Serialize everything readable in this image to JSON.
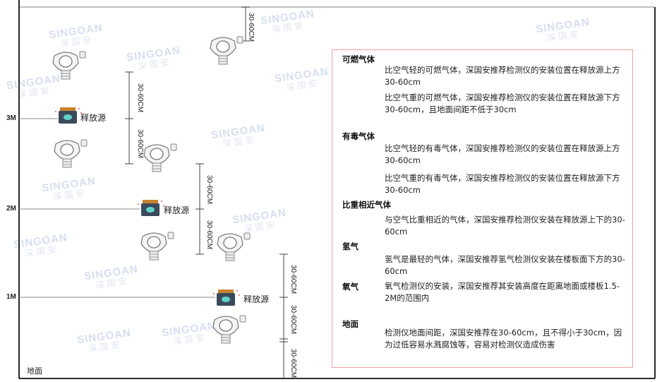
{
  "watermark": {
    "brand": "SINGOAN",
    "cn": "深国安"
  },
  "levels": [
    "3M",
    "2M",
    "1M"
  ],
  "ground_label": "地面",
  "source_label": "释放源",
  "dimension_label": "30-60CM",
  "notes": {
    "flammable": {
      "title": "可燃气体",
      "lighter": "比空气轻的可燃气体，深国安推荐检测仪的安装位置在释放源上方30-60cm",
      "heavier": "比空气重的可燃气体，深国安推荐检测仪的安装位置在释放源下方30-60cm，且地面间距不低于30cm"
    },
    "toxic": {
      "title": "有毒气体",
      "lighter": "比空气轻的有毒气体，深国安推荐检测仪的安装位置在释放源上方30-60cm",
      "heavier": "比空气重的有毒气体，深国安推荐检测仪的安装位置在释放源下方30-60cm"
    },
    "similar": {
      "title": "比重相近气体",
      "text": "与空气比重相近的气体，深国安推荐检测仪安装在释放源上下的30-60cm"
    },
    "hydrogen": {
      "title": "氢气",
      "text": "氢气是最轻的气体，深国安推荐氢气检测仪安装在楼板面下方的30-60cm"
    },
    "oxygen": {
      "title": "氧气",
      "text": "氧气检测仪的安装，深国安推荐其安装高度在距离地面或楼板1.5-2M的范围内"
    },
    "ground": {
      "title": "地面",
      "text": "检测仪地面间距，深国安推荐在30-60cm，且不得小于30cm，因为过低容易水溅腐蚀等，容易对检测仪造成伤害"
    }
  },
  "colors": {
    "frame": "#111111",
    "level_line": "#888888",
    "note_border": "#f0a0a0",
    "source_body": "#3b4a5a",
    "source_cap": "#c7822e",
    "source_face": "#5fd3c8"
  }
}
